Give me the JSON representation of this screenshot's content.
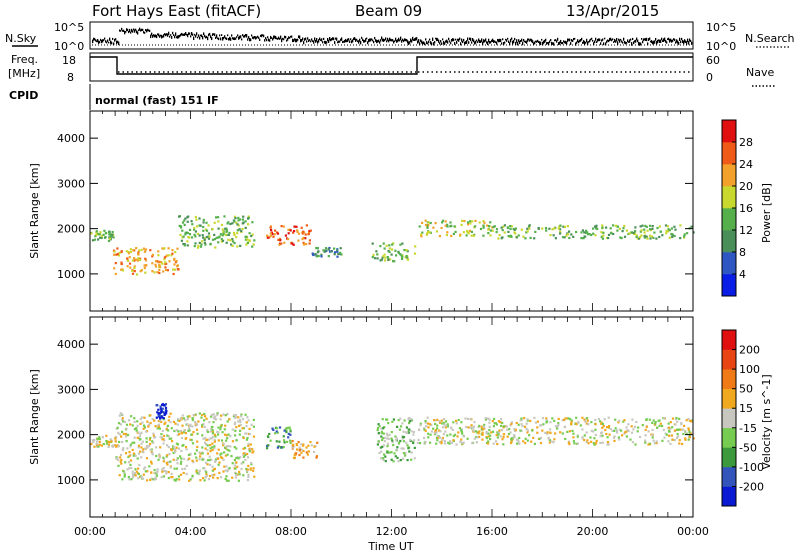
{
  "header": {
    "station": "Fort Hays East (fitACF)",
    "beam": "Beam 09",
    "date": "13/Apr/2015"
  },
  "top_panels": {
    "noise_left_label": "N.Sky",
    "noise_right_label": "N.Search",
    "noise_left_ticks": [
      "10^5",
      "10^0"
    ],
    "noise_right_ticks": [
      "10^5",
      "10^0"
    ],
    "freq_label": "Freq.",
    "freq_unit": "[MHz]",
    "freq_ticks": [
      "18",
      "8"
    ],
    "nave_label": "Nave",
    "nave_ticks": [
      "60",
      "0"
    ],
    "cpid_label": "CPID",
    "cpid_text": "normal (fast) 151 IF"
  },
  "chart_data": [
    {
      "type": "heatmap",
      "quantity": "power",
      "ylabel": "Slant Range [km]",
      "yticks": [
        1000,
        2000,
        3000,
        4000
      ],
      "ylim": [
        180,
        4600
      ],
      "xlim": [
        0,
        24
      ],
      "colorbar": {
        "label": "Power [dB]",
        "ticks": [
          "4",
          "8",
          "12",
          "16",
          "20",
          "24",
          "28"
        ],
        "colors": [
          "#0a1de6",
          "#2e57c4",
          "#4a8f5a",
          "#55b04c",
          "#c9d82e",
          "#f2a22a",
          "#ef5a18",
          "#e01010"
        ]
      },
      "regions": [
        {
          "t": [
            0.0,
            0.9
          ],
          "r": [
            1750,
            2000
          ],
          "level": 3
        },
        {
          "t": [
            0.9,
            3.5
          ],
          "r": [
            1000,
            1600
          ],
          "level": 5
        },
        {
          "t": [
            3.5,
            6.5
          ],
          "r": [
            1600,
            2300
          ],
          "level": 3
        },
        {
          "t": [
            7.0,
            8.8
          ],
          "r": [
            1650,
            2100
          ],
          "level": 6
        },
        {
          "t": [
            8.8,
            10.0
          ],
          "r": [
            1400,
            1600
          ],
          "level": 2
        },
        {
          "t": [
            11.2,
            12.9
          ],
          "r": [
            1300,
            1700
          ],
          "level": 3
        },
        {
          "t": [
            13.0,
            16.0
          ],
          "r": [
            1850,
            2200
          ],
          "level": 4
        },
        {
          "t": [
            16.0,
            24.0
          ],
          "r": [
            1800,
            2100
          ],
          "level": 3
        }
      ]
    },
    {
      "type": "heatmap",
      "quantity": "velocity",
      "ylabel": "Slant Range [km]",
      "yticks": [
        1000,
        2000,
        3000,
        4000
      ],
      "ylim": [
        180,
        4600
      ],
      "xlim": [
        0,
        24
      ],
      "colorbar": {
        "label": "Velocity [m s^-1]",
        "ticks": [
          "200",
          "100",
          "50",
          "15",
          "-15",
          "-50",
          "-100",
          "-200"
        ],
        "colors": [
          "#0a1ad2",
          "#3355bb",
          "#3c9a3c",
          "#76cc50",
          "#c7c7c0",
          "#f0a81e",
          "#f07a16",
          "#e84414",
          "#e01010"
        ]
      },
      "regions": [
        {
          "t": [
            0.0,
            1.0
          ],
          "r": [
            1750,
            2000
          ],
          "level": 4
        },
        {
          "t": [
            1.0,
            6.5
          ],
          "r": [
            1000,
            2500
          ],
          "level": 4
        },
        {
          "t": [
            2.6,
            3.0
          ],
          "r": [
            2350,
            2700
          ],
          "level": 0
        },
        {
          "t": [
            7.0,
            8.0
          ],
          "r": [
            1700,
            2200
          ],
          "level": 2
        },
        {
          "t": [
            8.0,
            9.0
          ],
          "r": [
            1500,
            1900
          ],
          "level": 5
        },
        {
          "t": [
            11.4,
            12.9
          ],
          "r": [
            1400,
            2400
          ],
          "level": 3
        },
        {
          "t": [
            13.0,
            24.0
          ],
          "r": [
            1800,
            2400
          ],
          "level": 4
        }
      ]
    }
  ],
  "xaxis": {
    "label": "Time UT",
    "ticks": [
      "00:00",
      "04:00",
      "08:00",
      "12:00",
      "16:00",
      "20:00",
      "00:00"
    ]
  }
}
